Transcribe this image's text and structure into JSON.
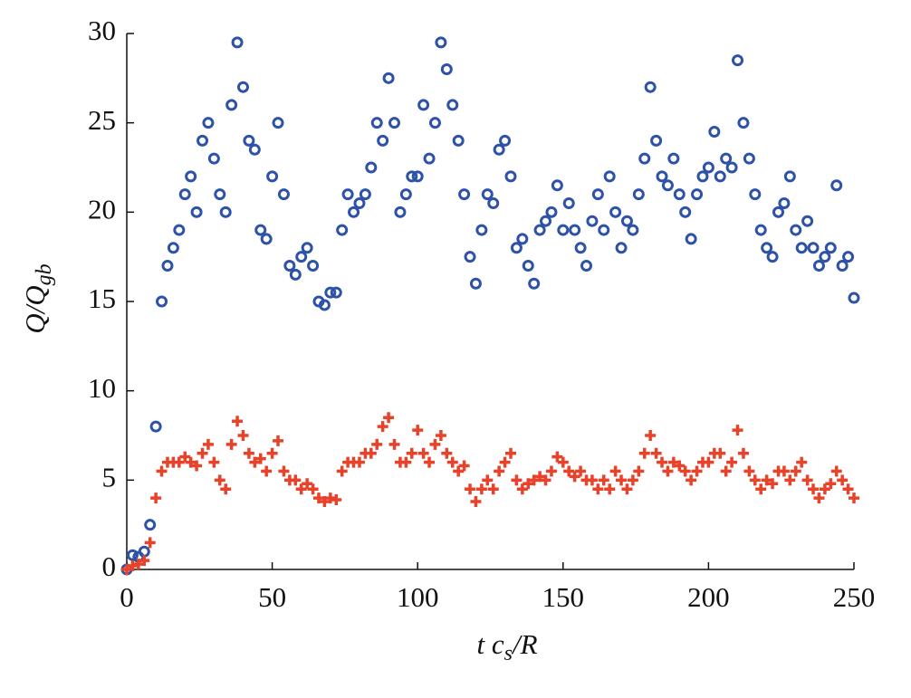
{
  "chart_data": {
    "type": "scatter",
    "y_label": [
      "Q/Q",
      "gb"
    ],
    "x_label": [
      "t c",
      "s",
      "/R"
    ],
    "xlim": [
      0,
      250
    ],
    "xticks": [
      0,
      50,
      100,
      150,
      200,
      250
    ],
    "ylim": [
      0,
      30
    ],
    "yticks": [
      0,
      5,
      10,
      15,
      20,
      25,
      30
    ],
    "grid": false,
    "x": [
      0,
      2,
      4,
      6,
      8,
      10,
      12,
      14,
      16,
      18,
      20,
      22,
      24,
      26,
      28,
      30,
      32,
      34,
      36,
      38,
      40,
      42,
      44,
      46,
      48,
      50,
      52,
      54,
      56,
      58,
      60,
      62,
      64,
      66,
      68,
      70,
      72,
      74,
      76,
      78,
      80,
      82,
      84,
      86,
      88,
      90,
      92,
      94,
      96,
      98,
      100,
      102,
      104,
      106,
      108,
      110,
      112,
      114,
      116,
      118,
      120,
      122,
      124,
      126,
      128,
      130,
      132,
      134,
      136,
      138,
      140,
      142,
      144,
      146,
      148,
      150,
      152,
      154,
      156,
      158,
      160,
      162,
      164,
      166,
      168,
      170,
      172,
      174,
      176,
      178,
      180,
      182,
      184,
      186,
      188,
      190,
      192,
      194,
      196,
      198,
      200,
      202,
      204,
      206,
      208,
      210,
      212,
      214,
      216,
      218,
      220,
      222,
      224,
      226,
      228,
      230,
      232,
      234,
      236,
      238,
      240,
      242,
      244,
      246,
      248,
      250
    ],
    "series": [
      {
        "color": "#2d52a8",
        "marker": "circle",
        "values": [
          0,
          0.8,
          0.7,
          1,
          2.5,
          8,
          15,
          17,
          18,
          19,
          21,
          22,
          20,
          24,
          25,
          23,
          21,
          20,
          26,
          29.5,
          27,
          24,
          23.5,
          19,
          18.5,
          22,
          25,
          21,
          17,
          16.5,
          17.5,
          18,
          17,
          15,
          14.8,
          15.5,
          15.5,
          19,
          21,
          20,
          20.5,
          21,
          22.5,
          25,
          24,
          27.5,
          25,
          20,
          21,
          22,
          22,
          26,
          23,
          25,
          29.5,
          28,
          26,
          24,
          21,
          17.5,
          16,
          19,
          21,
          20.5,
          23.5,
          24,
          22,
          18,
          18.5,
          17,
          16,
          19,
          19.5,
          20,
          21.5,
          19,
          20.5,
          19,
          18,
          17,
          19.5,
          21,
          19,
          22,
          20,
          18,
          19.5,
          19,
          21,
          23,
          27,
          24,
          22,
          21.5,
          23,
          21,
          20,
          18.5,
          21,
          22,
          22.5,
          24.5,
          22,
          23,
          22.5,
          28.5,
          25,
          23,
          21,
          19,
          18,
          17.5,
          20,
          20.5,
          22,
          19,
          18,
          19.5,
          18,
          17,
          17.5,
          18,
          21.5,
          17,
          17.5,
          15.2
        ]
      },
      {
        "color": "#e8432a",
        "marker": "plus",
        "values": [
          0,
          0.2,
          0.3,
          0.5,
          1.5,
          4,
          5.5,
          6,
          6,
          6,
          6.3,
          6,
          5.8,
          6.5,
          7,
          6,
          5,
          4.5,
          7,
          8.3,
          7.5,
          6.5,
          6,
          6.2,
          5.5,
          6.5,
          7.2,
          5.5,
          5,
          5,
          4.5,
          4.8,
          4.5,
          4,
          3.8,
          4,
          3.9,
          5.5,
          6,
          6,
          6,
          6.5,
          6.5,
          7,
          8,
          8.5,
          7,
          6,
          6,
          6.5,
          7.8,
          6.5,
          6,
          7,
          7.5,
          6.5,
          6,
          5.5,
          5.8,
          4.5,
          3.8,
          4.5,
          5,
          4.5,
          5.5,
          6,
          6.5,
          5,
          4.5,
          4.8,
          5,
          5.2,
          5,
          5.5,
          6.3,
          6,
          5.5,
          5.2,
          5.5,
          5,
          5,
          4.5,
          5,
          4.5,
          5.5,
          5,
          4.5,
          5,
          5.5,
          6.5,
          7.5,
          6.5,
          6,
          5.5,
          6,
          5.8,
          5.5,
          5,
          5.5,
          6,
          6,
          6.5,
          6.5,
          5.5,
          6,
          7.8,
          6.5,
          5.5,
          5,
          4.5,
          5,
          4.8,
          5.5,
          5.5,
          5,
          5.5,
          6,
          5,
          4.5,
          4,
          4.5,
          4.8,
          5.5,
          5,
          4.5,
          4
        ]
      }
    ]
  }
}
